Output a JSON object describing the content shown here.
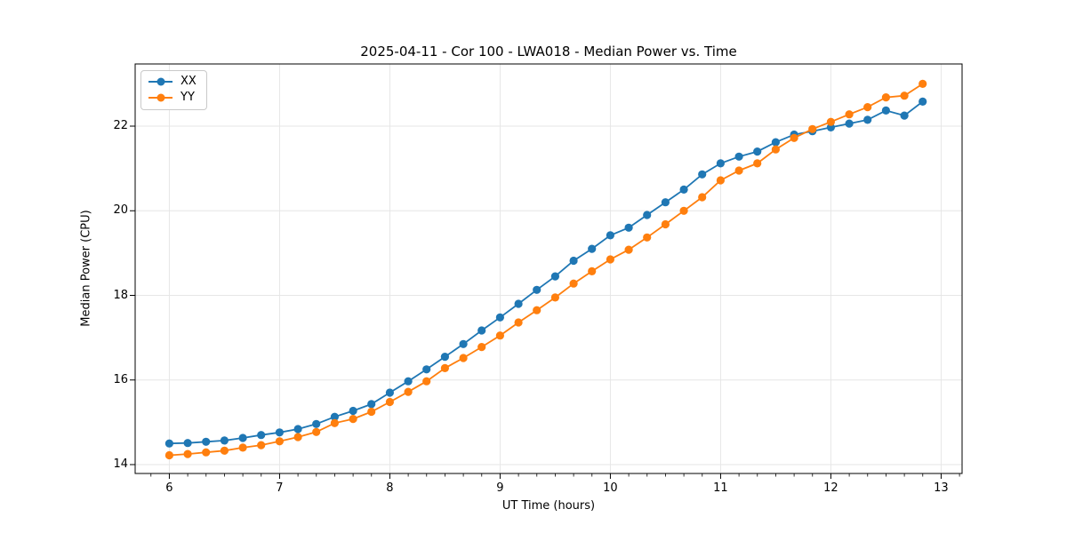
{
  "chart_data": {
    "type": "line",
    "title": "2025-04-11 - Cor 100 - LWA018 - Median Power vs. Time",
    "xlabel": "UT Time (hours)",
    "ylabel": "Median Power (CPU)",
    "xlim": [
      5.69,
      13.19
    ],
    "ylim": [
      13.79,
      23.47
    ],
    "xticks": [
      6,
      7,
      8,
      9,
      10,
      11,
      12,
      13
    ],
    "yticks": [
      14,
      16,
      18,
      20,
      22
    ],
    "x_minor_step_hours": 0.1667,
    "grid": true,
    "legend_position": "upper-left",
    "marker": "circle",
    "x": [
      6.0,
      6.167,
      6.333,
      6.5,
      6.667,
      6.833,
      7.0,
      7.167,
      7.333,
      7.5,
      7.667,
      7.833,
      8.0,
      8.167,
      8.333,
      8.5,
      8.667,
      8.833,
      9.0,
      9.167,
      9.333,
      9.5,
      9.667,
      9.833,
      10.0,
      10.167,
      10.333,
      10.5,
      10.667,
      10.833,
      11.0,
      11.167,
      11.333,
      11.5,
      11.667,
      11.833,
      12.0,
      12.167,
      12.333,
      12.5,
      12.667,
      12.833
    ],
    "series": [
      {
        "name": "XX",
        "color": "#1f77b4",
        "values": [
          14.5,
          14.51,
          14.54,
          14.57,
          14.63,
          14.7,
          14.76,
          14.84,
          14.96,
          15.13,
          15.27,
          15.43,
          15.7,
          15.97,
          16.25,
          16.55,
          16.85,
          17.17,
          17.48,
          17.8,
          18.13,
          18.45,
          18.82,
          19.1,
          19.42,
          19.6,
          19.9,
          20.2,
          20.5,
          20.86,
          21.12,
          21.28,
          21.4,
          21.62,
          21.8,
          21.88,
          21.97,
          22.06,
          22.15,
          22.37,
          22.25,
          22.58
        ]
      },
      {
        "name": "YY",
        "color": "#ff7f0e",
        "values": [
          14.22,
          14.25,
          14.29,
          14.33,
          14.4,
          14.46,
          14.55,
          14.65,
          14.77,
          14.98,
          15.08,
          15.25,
          15.48,
          15.72,
          15.97,
          16.28,
          16.52,
          16.78,
          17.05,
          17.36,
          17.65,
          17.95,
          18.28,
          18.57,
          18.85,
          19.08,
          19.37,
          19.68,
          20.0,
          20.32,
          20.72,
          20.95,
          21.12,
          21.45,
          21.72,
          21.93,
          22.1,
          22.28,
          22.45,
          22.68,
          22.72,
          23.0
        ]
      }
    ],
    "style": {
      "grid_color": "#e6e6e6",
      "axis_color": "#000000",
      "background": "#ffffff"
    }
  }
}
